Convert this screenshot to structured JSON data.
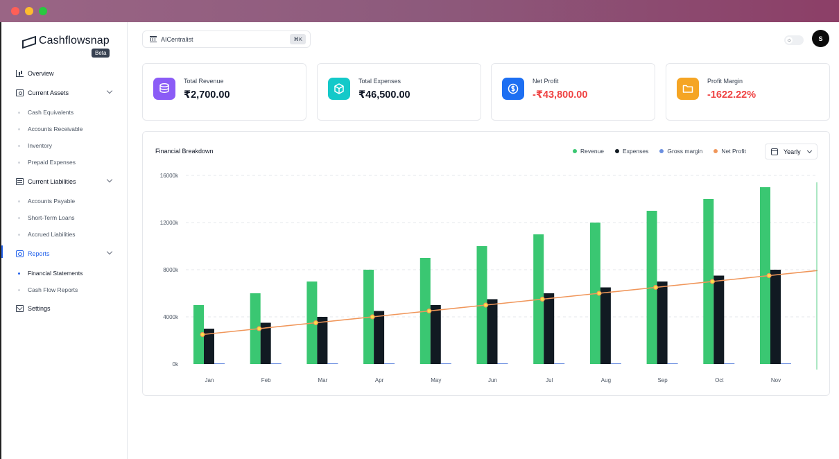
{
  "app": {
    "brand_name": "Cashflowsnap",
    "beta_label": "Beta"
  },
  "sidebar": {
    "items": [
      {
        "label": "Overview",
        "icon": "bar-chart-icon"
      },
      {
        "label": "Current Assets",
        "icon": "cash-icon",
        "expanded": true,
        "children": [
          "Cash Equivalents",
          "Accounts Receivable",
          "Inventory",
          "Prepaid Expenses"
        ]
      },
      {
        "label": "Current Liabilities",
        "icon": "liabilities-icon",
        "expanded": true,
        "children": [
          "Accounts Payable",
          "Short-Term Loans",
          "Accrued Liabilities"
        ]
      },
      {
        "label": "Reports",
        "icon": "reports-icon",
        "expanded": true,
        "active": true,
        "children": [
          "Financial Statements",
          "Cash Flow Reports"
        ]
      },
      {
        "label": "Settings",
        "icon": "mail-icon"
      }
    ]
  },
  "header": {
    "org_name": "AICentralist",
    "shortcut": "⌘K",
    "avatar_initial": "S"
  },
  "stats": [
    {
      "label": "Total Revenue",
      "value": "₹2,700.00",
      "color": "#8b5cf6",
      "icon": "coins-icon"
    },
    {
      "label": "Total Expenses",
      "value": "₹46,500.00",
      "color": "#14c9c9",
      "icon": "box-icon"
    },
    {
      "label": "Net Profit",
      "value": "-₹43,800.00",
      "color": "#1d6ff2",
      "icon": "dollar-icon"
    },
    {
      "label": "Profit Margin",
      "value": "-1622.22%",
      "color": "#f5a524",
      "icon": "folder-icon"
    }
  ],
  "chart": {
    "title": "Financial Breakdown",
    "period": "Yearly",
    "legend": [
      {
        "name": "Revenue",
        "color": "#3ac772"
      },
      {
        "name": "Expenses",
        "color": "#111a22"
      },
      {
        "name": "Gross margin",
        "color": "#6b8fe0"
      },
      {
        "name": "Net Profit",
        "color": "#f0965a"
      }
    ]
  },
  "chart_data": {
    "type": "bar",
    "title": "Financial Breakdown",
    "categories": [
      "Jan",
      "Feb",
      "Mar",
      "Apr",
      "May",
      "Jun",
      "Jul",
      "Aug",
      "Sep",
      "Oct",
      "Nov"
    ],
    "y_ticks": [
      "0k",
      "4000k",
      "8000k",
      "12000k",
      "16000k"
    ],
    "ylim": [
      0,
      16000
    ],
    "grid": true,
    "legend_position": "top-right",
    "series": [
      {
        "name": "Revenue",
        "type": "bar",
        "color": "#3ac772",
        "values": [
          5000,
          6000,
          7000,
          8000,
          9000,
          10000,
          11000,
          12000,
          13000,
          14000,
          15000
        ]
      },
      {
        "name": "Expenses",
        "type": "bar",
        "color": "#111a22",
        "values": [
          3000,
          3500,
          4000,
          4500,
          5000,
          5500,
          6000,
          6500,
          7000,
          7500,
          8000
        ]
      },
      {
        "name": "Gross margin",
        "type": "bar",
        "color": "#6b8fe0",
        "values": [
          0,
          0,
          0,
          0,
          0,
          0,
          0,
          0,
          0,
          0,
          0
        ]
      },
      {
        "name": "Net Profit",
        "type": "line",
        "color": "#f0965a",
        "values": [
          2500,
          3000,
          3500,
          4000,
          4500,
          5000,
          5500,
          6000,
          6500,
          7000,
          7500
        ]
      }
    ]
  }
}
